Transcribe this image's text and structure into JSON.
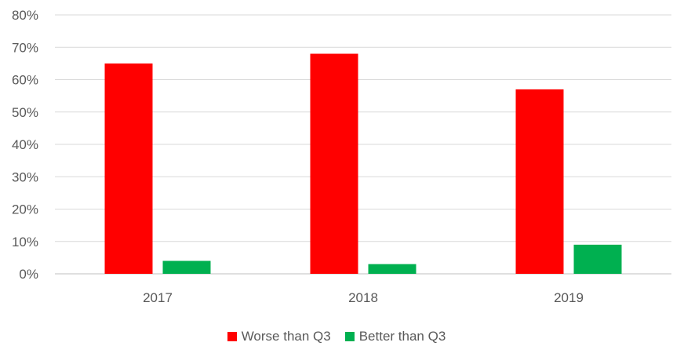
{
  "chart_data": {
    "type": "bar",
    "categories": [
      "2017",
      "2018",
      "2019"
    ],
    "series": [
      {
        "name": "Worse than Q3",
        "color": "#ff0000",
        "values": [
          0.65,
          0.68,
          0.57
        ]
      },
      {
        "name": "Better than Q3",
        "color": "#00b050",
        "values": [
          0.04,
          0.03,
          0.09
        ]
      }
    ],
    "title": "",
    "xlabel": "",
    "ylabel": "",
    "ylim": [
      0,
      0.8
    ],
    "yticks": [
      "0%",
      "10%",
      "20%",
      "30%",
      "40%",
      "50%",
      "60%",
      "70%",
      "80%"
    ],
    "grid": true,
    "legend_position": "bottom"
  }
}
